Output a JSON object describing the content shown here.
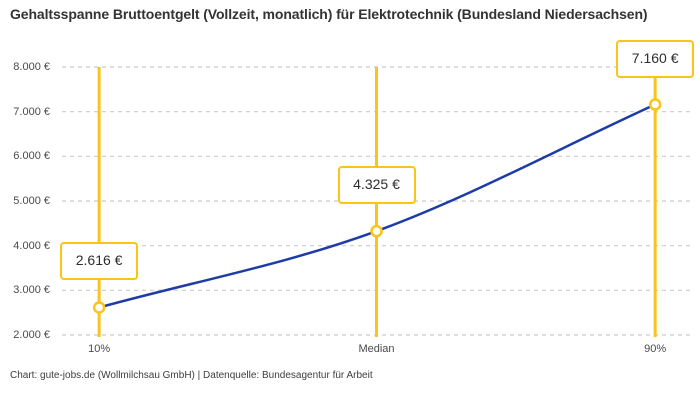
{
  "title": "Gehaltsspanne Bruttoentgelt (Vollzeit, monatlich) für Elektrotechnik (Bundesland Niedersachsen)",
  "footer": "Chart: gute-jobs.de (Wollmilchsau GmbH) | Datenquelle: Bundesagentur für Arbeit",
  "colors": {
    "accent_yellow": "#FCC419",
    "line_blue": "#1E3CA8",
    "grid_gray": "#CBCBCB",
    "title_text": "#333333",
    "axis_text": "#4A4A4A",
    "box_text": "#2E2E2E",
    "marker_fill": "#FFFFFF"
  },
  "chart_data": {
    "type": "line",
    "title": "Gehaltsspanne Bruttoentgelt (Vollzeit, monatlich) für Elektrotechnik (Bundesland Niedersachsen)",
    "categories": [
      "10%",
      "Median",
      "90%"
    ],
    "values": [
      2616,
      4325,
      7160
    ],
    "value_labels": [
      "2.616 €",
      "4.325 €",
      "7.160 €"
    ],
    "ylim": [
      2000,
      8000
    ],
    "ytick_step": 1000,
    "ytick_labels": [
      "2.000 €",
      "3.000 €",
      "4.000 €",
      "5.000 €",
      "6.000 €",
      "7.000 €",
      "8.000 €"
    ],
    "xlabel": "",
    "ylabel": "",
    "grid": true,
    "legend": "none",
    "marker": "open-circle",
    "annotation_style": "value labels in yellow-bordered white boxes above each point, vertical yellow percentile lines",
    "source": "Chart: gute-jobs.de (Wollmilchsau GmbH) | Datenquelle: Bundesagentur für Arbeit"
  }
}
